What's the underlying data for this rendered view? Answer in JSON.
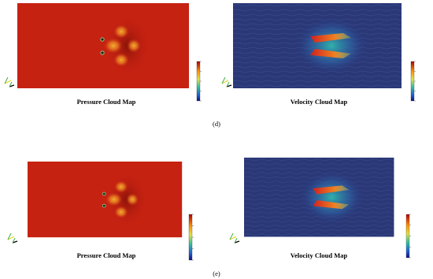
{
  "panels": [
    {
      "label": "(d)",
      "images": [
        {
          "caption": "Pressure Cloud Map"
        },
        {
          "caption": "Velocity Cloud Map"
        }
      ]
    },
    {
      "label": "(e)",
      "images": [
        {
          "caption": "Pressure Cloud Map"
        },
        {
          "caption": "Velocity Cloud Map"
        }
      ]
    }
  ]
}
